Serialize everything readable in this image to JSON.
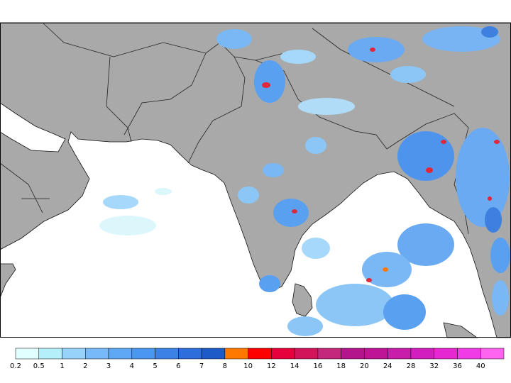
{
  "colorbar": {
    "labels": [
      "0.2",
      "0.5",
      "1",
      "2",
      "3",
      "4",
      "5",
      "6",
      "7",
      "8",
      "10",
      "12",
      "14",
      "16",
      "18",
      "20",
      "24",
      "28",
      "32",
      "36",
      "40"
    ],
    "colors": [
      "#e1ffff",
      "#b4f0fa",
      "#96d2fa",
      "#78b9fa",
      "#5ea8f5",
      "#4b96f0",
      "#3c82e6",
      "#2d6edc",
      "#1e5ac8",
      "#ff7800",
      "#ff0000",
      "#e6003c",
      "#d2145a",
      "#c3287d",
      "#b4148c",
      "#be1496",
      "#c81eaa",
      "#d21ebe",
      "#e628d2",
      "#f03ce6",
      "#ff64f0"
    ]
  }
}
